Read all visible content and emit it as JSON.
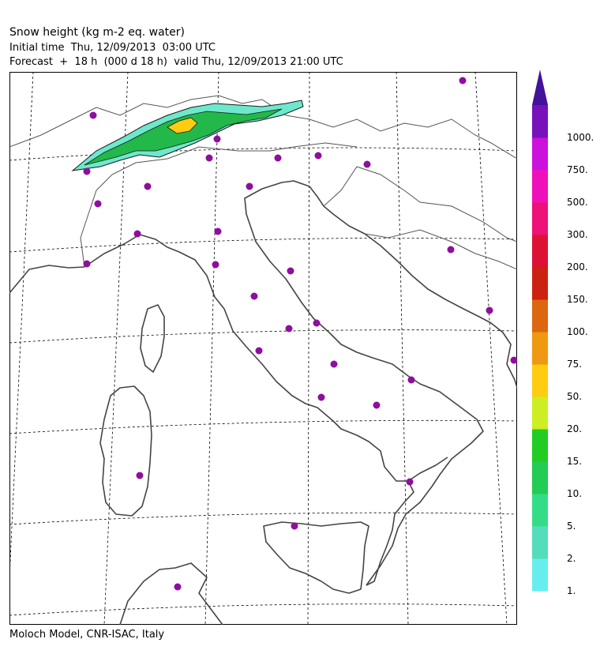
{
  "header": {
    "title": "Snow height (kg m-2 eq. water)",
    "initial_time": "Initial time  Thu, 12/09/2013  03:00 UTC",
    "forecast": "Forecast  +  18 h  (000 d 18 h)  valid Thu, 12/09/2013 21:00 UTC"
  },
  "footer": {
    "credit": "Moloch Model, CNR-ISAC, Italy"
  },
  "colors": {
    "coastline": "#333333",
    "grid": "#000000",
    "station": "#8e0e9e",
    "snow_low": "#6ee8cc",
    "snow_mid": "#22b84a",
    "snow_high": "#1a1a1a"
  },
  "legend": {
    "levels": [
      {
        "label": "1.",
        "color": "#66eeee"
      },
      {
        "label": "2.",
        "color": "#55ddbb"
      },
      {
        "label": "5.",
        "color": "#33dd88"
      },
      {
        "label": "10.",
        "color": "#22cc55"
      },
      {
        "label": "15.",
        "color": "#22cc22"
      },
      {
        "label": "20.",
        "color": "#ccee22"
      },
      {
        "label": "50.",
        "color": "#ffcc11"
      },
      {
        "label": "75.",
        "color": "#ee9911"
      },
      {
        "label": "100.",
        "color": "#dd6611"
      },
      {
        "label": "150.",
        "color": "#cc2211"
      },
      {
        "label": "200.",
        "color": "#dd1133"
      },
      {
        "label": "300.",
        "color": "#ee1177"
      },
      {
        "label": "500.",
        "color": "#ee11bb"
      },
      {
        "label": "750.",
        "color": "#cc11dd"
      },
      {
        "label": "1000.",
        "color": "#7711bb"
      }
    ],
    "top_color": "#44119a"
  }
}
